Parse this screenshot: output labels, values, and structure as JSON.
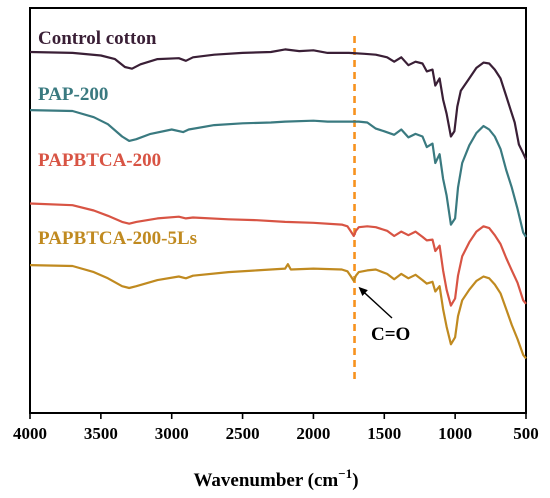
{
  "chart_data": {
    "type": "line",
    "xlabel": "Wavenumber (cm",
    "xlabel_sup": "−1",
    "xlabel_close": ")",
    "xlim": [
      4000,
      500
    ],
    "x_reversed": true,
    "y_ticks_shown": false,
    "x_ticks": [
      4000,
      3500,
      3000,
      2500,
      2000,
      1500,
      1000,
      500
    ],
    "x_tick_labels": [
      "4000",
      "3500",
      "3000",
      "2500",
      "2000",
      "1500",
      "1000",
      "500"
    ],
    "ylim": [
      0,
      4.6
    ],
    "series": [
      {
        "name": "Control cotton",
        "color": "#3a1f36",
        "points": [
          [
            4000,
            4.1
          ],
          [
            3700,
            4.09
          ],
          [
            3500,
            4.06
          ],
          [
            3400,
            4.02
          ],
          [
            3330,
            3.93
          ],
          [
            3280,
            3.91
          ],
          [
            3220,
            3.96
          ],
          [
            3100,
            4.02
          ],
          [
            2950,
            4.03
          ],
          [
            2900,
            4.0
          ],
          [
            2850,
            4.04
          ],
          [
            2700,
            4.07
          ],
          [
            2500,
            4.09
          ],
          [
            2300,
            4.1
          ],
          [
            2200,
            4.13
          ],
          [
            2100,
            4.11
          ],
          [
            2000,
            4.12
          ],
          [
            1900,
            4.09
          ],
          [
            1750,
            4.09
          ],
          [
            1640,
            4.08
          ],
          [
            1560,
            4.07
          ],
          [
            1480,
            4.04
          ],
          [
            1430,
            3.99
          ],
          [
            1380,
            4.04
          ],
          [
            1330,
            3.95
          ],
          [
            1280,
            3.99
          ],
          [
            1230,
            3.97
          ],
          [
            1200,
            3.88
          ],
          [
            1160,
            3.9
          ],
          [
            1140,
            3.72
          ],
          [
            1110,
            3.8
          ],
          [
            1085,
            3.56
          ],
          [
            1060,
            3.4
          ],
          [
            1030,
            3.14
          ],
          [
            1005,
            3.2
          ],
          [
            985,
            3.48
          ],
          [
            960,
            3.66
          ],
          [
            900,
            3.8
          ],
          [
            850,
            3.92
          ],
          [
            800,
            3.98
          ],
          [
            760,
            3.97
          ],
          [
            720,
            3.9
          ],
          [
            680,
            3.8
          ],
          [
            640,
            3.6
          ],
          [
            610,
            3.45
          ],
          [
            580,
            3.3
          ],
          [
            550,
            3.05
          ],
          [
            520,
            2.95
          ],
          [
            500,
            2.88
          ]
        ]
      },
      {
        "name": "PAP-200",
        "color": "#3a7a80",
        "points": [
          [
            4000,
            3.44
          ],
          [
            3700,
            3.43
          ],
          [
            3550,
            3.36
          ],
          [
            3450,
            3.28
          ],
          [
            3350,
            3.14
          ],
          [
            3300,
            3.09
          ],
          [
            3250,
            3.11
          ],
          [
            3150,
            3.17
          ],
          [
            3000,
            3.22
          ],
          [
            2920,
            3.19
          ],
          [
            2880,
            3.22
          ],
          [
            2700,
            3.27
          ],
          [
            2500,
            3.29
          ],
          [
            2300,
            3.3
          ],
          [
            2200,
            3.31
          ],
          [
            2000,
            3.32
          ],
          [
            1900,
            3.31
          ],
          [
            1750,
            3.31
          ],
          [
            1680,
            3.31
          ],
          [
            1620,
            3.3
          ],
          [
            1560,
            3.23
          ],
          [
            1500,
            3.2
          ],
          [
            1430,
            3.16
          ],
          [
            1380,
            3.22
          ],
          [
            1330,
            3.13
          ],
          [
            1280,
            3.17
          ],
          [
            1230,
            3.14
          ],
          [
            1200,
            3.02
          ],
          [
            1160,
            3.06
          ],
          [
            1140,
            2.84
          ],
          [
            1110,
            2.94
          ],
          [
            1085,
            2.66
          ],
          [
            1060,
            2.47
          ],
          [
            1030,
            2.14
          ],
          [
            1000,
            2.21
          ],
          [
            980,
            2.56
          ],
          [
            950,
            2.84
          ],
          [
            900,
            3.04
          ],
          [
            850,
            3.18
          ],
          [
            800,
            3.26
          ],
          [
            760,
            3.22
          ],
          [
            720,
            3.14
          ],
          [
            680,
            3.0
          ],
          [
            640,
            2.76
          ],
          [
            600,
            2.56
          ],
          [
            560,
            2.32
          ],
          [
            520,
            2.05
          ],
          [
            500,
            2.0
          ]
        ]
      },
      {
        "name": "PAPBTCA-200",
        "color": "#d85444",
        "points": [
          [
            4000,
            2.38
          ],
          [
            3700,
            2.36
          ],
          [
            3550,
            2.3
          ],
          [
            3450,
            2.24
          ],
          [
            3350,
            2.17
          ],
          [
            3300,
            2.15
          ],
          [
            3250,
            2.17
          ],
          [
            3100,
            2.21
          ],
          [
            2950,
            2.23
          ],
          [
            2900,
            2.21
          ],
          [
            2850,
            2.22
          ],
          [
            2600,
            2.2
          ],
          [
            2400,
            2.19
          ],
          [
            2200,
            2.17
          ],
          [
            2000,
            2.16
          ],
          [
            1800,
            2.14
          ],
          [
            1760,
            2.12
          ],
          [
            1735,
            2.06
          ],
          [
            1715,
            2.01
          ],
          [
            1700,
            2.07
          ],
          [
            1680,
            2.11
          ],
          [
            1620,
            2.12
          ],
          [
            1560,
            2.11
          ],
          [
            1480,
            2.07
          ],
          [
            1430,
            2.01
          ],
          [
            1380,
            2.06
          ],
          [
            1330,
            2.02
          ],
          [
            1280,
            2.06
          ],
          [
            1230,
            2.0
          ],
          [
            1200,
            1.96
          ],
          [
            1160,
            1.97
          ],
          [
            1140,
            1.84
          ],
          [
            1110,
            1.9
          ],
          [
            1085,
            1.62
          ],
          [
            1060,
            1.4
          ],
          [
            1030,
            1.22
          ],
          [
            1000,
            1.3
          ],
          [
            980,
            1.56
          ],
          [
            950,
            1.78
          ],
          [
            900,
            1.94
          ],
          [
            850,
            2.06
          ],
          [
            800,
            2.12
          ],
          [
            760,
            2.1
          ],
          [
            720,
            2.02
          ],
          [
            680,
            1.92
          ],
          [
            640,
            1.76
          ],
          [
            600,
            1.62
          ],
          [
            560,
            1.48
          ],
          [
            520,
            1.28
          ],
          [
            500,
            1.24
          ]
        ]
      },
      {
        "name": "PAPBTCA-200-5Ls",
        "color": "#c08a20",
        "points": [
          [
            4000,
            1.68
          ],
          [
            3700,
            1.67
          ],
          [
            3550,
            1.6
          ],
          [
            3450,
            1.53
          ],
          [
            3350,
            1.44
          ],
          [
            3300,
            1.42
          ],
          [
            3250,
            1.44
          ],
          [
            3100,
            1.51
          ],
          [
            2950,
            1.55
          ],
          [
            2900,
            1.53
          ],
          [
            2850,
            1.56
          ],
          [
            2600,
            1.6
          ],
          [
            2400,
            1.62
          ],
          [
            2200,
            1.64
          ],
          [
            2180,
            1.69
          ],
          [
            2160,
            1.63
          ],
          [
            2000,
            1.64
          ],
          [
            1800,
            1.63
          ],
          [
            1760,
            1.61
          ],
          [
            1735,
            1.55
          ],
          [
            1715,
            1.5
          ],
          [
            1700,
            1.56
          ],
          [
            1680,
            1.6
          ],
          [
            1620,
            1.62
          ],
          [
            1560,
            1.63
          ],
          [
            1480,
            1.58
          ],
          [
            1430,
            1.52
          ],
          [
            1380,
            1.58
          ],
          [
            1330,
            1.53
          ],
          [
            1280,
            1.57
          ],
          [
            1230,
            1.51
          ],
          [
            1200,
            1.47
          ],
          [
            1160,
            1.49
          ],
          [
            1140,
            1.38
          ],
          [
            1110,
            1.44
          ],
          [
            1085,
            1.18
          ],
          [
            1060,
            0.98
          ],
          [
            1030,
            0.78
          ],
          [
            1000,
            0.86
          ],
          [
            980,
            1.1
          ],
          [
            950,
            1.28
          ],
          [
            900,
            1.4
          ],
          [
            850,
            1.5
          ],
          [
            800,
            1.55
          ],
          [
            760,
            1.53
          ],
          [
            720,
            1.46
          ],
          [
            680,
            1.36
          ],
          [
            640,
            1.18
          ],
          [
            600,
            1.0
          ],
          [
            560,
            0.84
          ],
          [
            520,
            0.66
          ],
          [
            500,
            0.62
          ]
        ]
      }
    ],
    "reference_line": {
      "x": 1710,
      "color": "#f7921e",
      "style": "dashed"
    },
    "annotation": {
      "text": "C=O",
      "point_x": 1710,
      "point_y": 1.5
    }
  }
}
